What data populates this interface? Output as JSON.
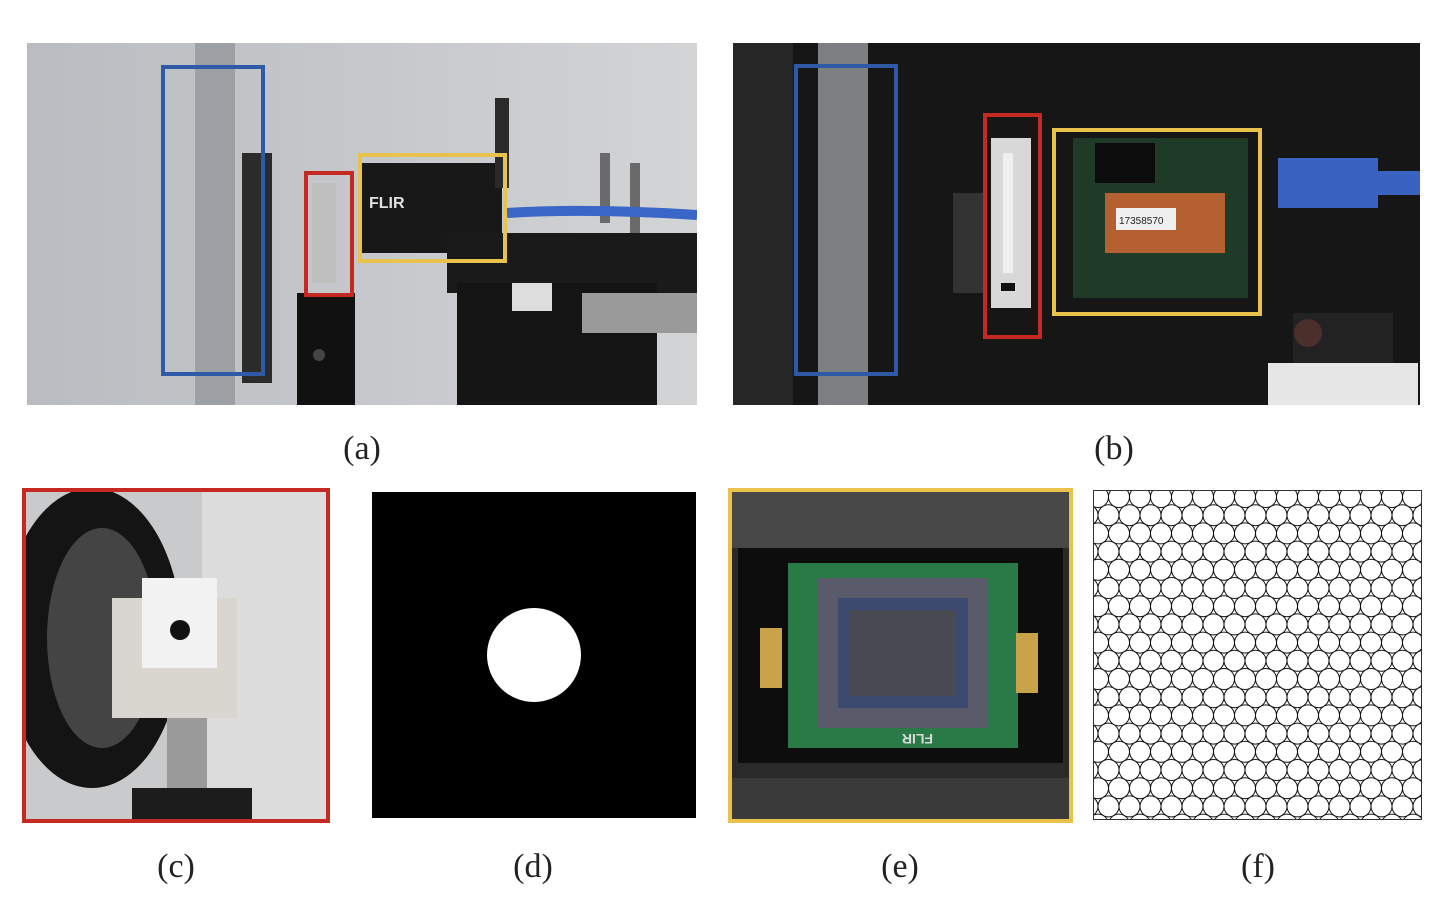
{
  "captions": {
    "a": "(a)",
    "b": "(b)",
    "c": "(c)",
    "d": "(d)",
    "e": "(e)",
    "f": "(f)"
  },
  "labels": {
    "camera_brand": "FLIR",
    "sensor_brand": "FLIR",
    "serial_sticker": "17358570"
  },
  "colors": {
    "blue_box": "#2f5aa8",
    "red_box": "#c42a22",
    "yellow_box": "#e8c24a"
  }
}
